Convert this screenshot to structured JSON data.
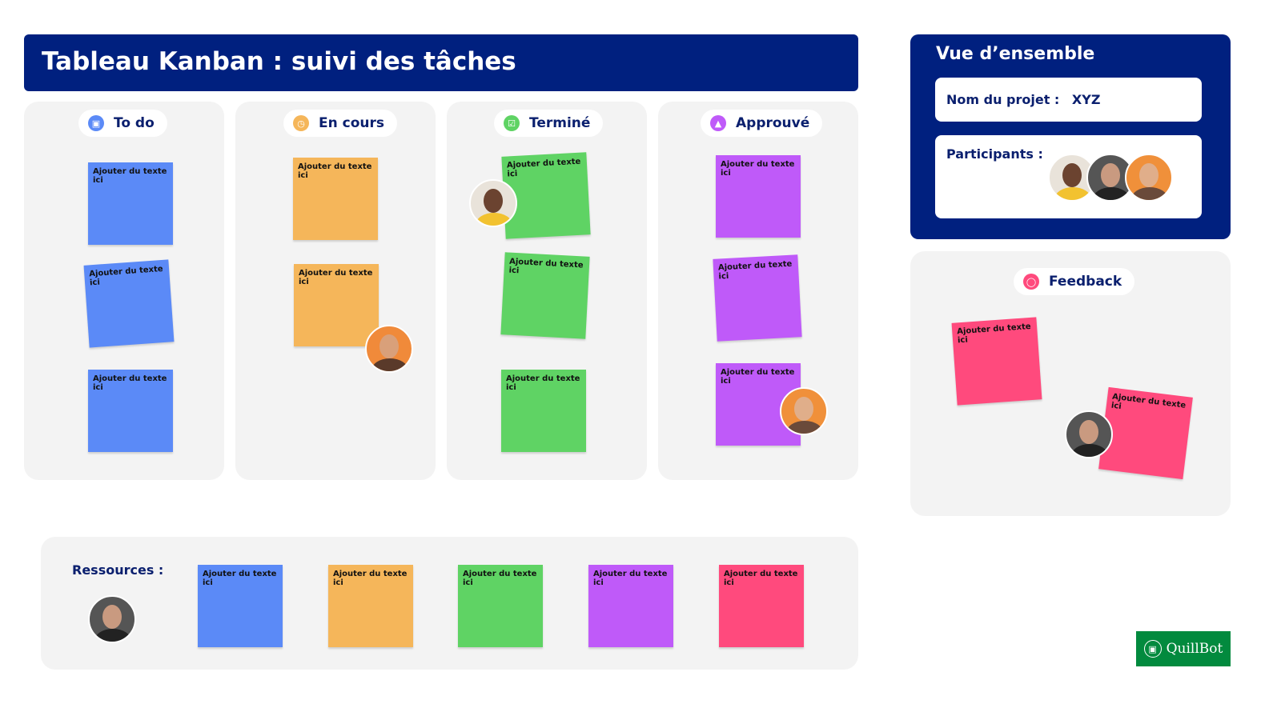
{
  "title": "Tableau Kanban : suivi des tâches",
  "colors": {
    "blue": "#5b8af7",
    "orange": "#f5b65a",
    "green": "#5fd364",
    "purple": "#bf5af9",
    "pink": "#ff4a7d",
    "navy": "#00207f"
  },
  "columns": [
    {
      "label": "To do",
      "icon": "calendar-check-icon",
      "color": "#5b8af7",
      "notes": [
        "Ajouter du texte ici",
        "Ajouter du texte ici",
        "Ajouter du texte ici"
      ]
    },
    {
      "label": "En cours",
      "icon": "clock-icon",
      "color": "#f5b65a",
      "notes": [
        "Ajouter du texte ici",
        "Ajouter du texte ici"
      ]
    },
    {
      "label": "Terminé",
      "icon": "checkbox-icon",
      "color": "#5fd364",
      "notes": [
        "Ajouter du texte ici",
        "Ajouter du texte ici",
        "Ajouter du texte ici"
      ]
    },
    {
      "label": "Approuvé",
      "icon": "thumbs-up-icon",
      "color": "#bf5af9",
      "notes": [
        "Ajouter du texte ici",
        "Ajouter du texte ici",
        "Ajouter du texte ici"
      ]
    }
  ],
  "overview": {
    "title": "Vue d’ensemble",
    "project_label": "Nom du projet :",
    "project_value": "XYZ",
    "participants_label": "Participants :"
  },
  "feedback": {
    "label": "Feedback",
    "icon": "chat-bubble-icon",
    "notes": [
      "Ajouter du texte ici",
      "Ajouter du texte ici"
    ]
  },
  "resources": {
    "label": "Ressources :",
    "notes": [
      "Ajouter du texte ici",
      "Ajouter du texte ici",
      "Ajouter du texte ici",
      "Ajouter du texte ici",
      "Ajouter du texte ici"
    ]
  },
  "brand": "QuillBot"
}
